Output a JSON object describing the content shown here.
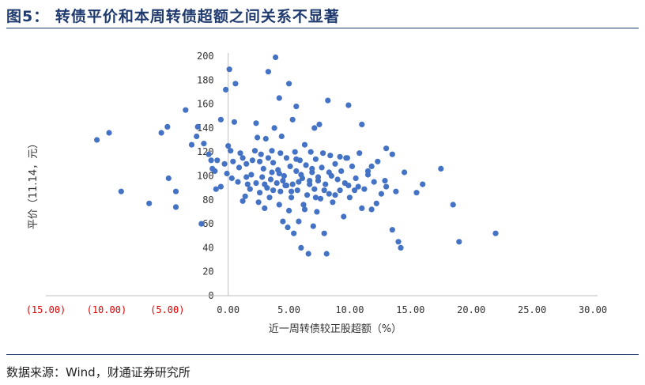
{
  "title": "图5：  转债平价和本周转债超额之间关系不显著",
  "source": "数据来源：Wind，财通证券研究所",
  "chart_data": {
    "type": "scatter",
    "xlabel": "近一周转债较正股超额（%）",
    "ylabel": "平价（11.14，元）",
    "xlim": [
      -15,
      30
    ],
    "ylim": [
      0,
      200
    ],
    "x_ticks": [
      -15,
      -10,
      -5,
      0,
      5,
      10,
      15,
      20,
      25,
      30
    ],
    "x_tick_labels": [
      "(15.00)",
      "(10.00)",
      "(5.00)",
      "0.00",
      "5.00",
      "10.00",
      "15.00",
      "20.00",
      "25.00",
      "30.00"
    ],
    "y_ticks": [
      0,
      20,
      40,
      60,
      80,
      100,
      120,
      140,
      160,
      180,
      200
    ],
    "y_tick_labels": [
      "0",
      "20",
      "40",
      "60",
      "80",
      "100",
      "120",
      "140",
      "160",
      "180",
      "200"
    ],
    "grid": false,
    "legend": "none",
    "point_color": "#4472c4",
    "negative_tick_color": "#e00000",
    "series": [
      {
        "points": [
          [
            -10.8,
            130
          ],
          [
            -9.8,
            136
          ],
          [
            -8.8,
            87
          ],
          [
            -6.5,
            77
          ],
          [
            -5.5,
            136
          ],
          [
            -5.0,
            141
          ],
          [
            -4.9,
            98
          ],
          [
            -4.3,
            74
          ],
          [
            -4.3,
            87
          ],
          [
            -3.5,
            155
          ],
          [
            -3.0,
            126
          ],
          [
            -2.6,
            133
          ],
          [
            -2.5,
            141
          ],
          [
            -2.2,
            60
          ],
          [
            -2.0,
            127
          ],
          [
            -1.6,
            118
          ],
          [
            -1.4,
            113
          ],
          [
            -1.3,
            106
          ],
          [
            -1.1,
            104
          ],
          [
            -1.0,
            89
          ],
          [
            -0.9,
            113
          ],
          [
            -0.6,
            91
          ],
          [
            -0.6,
            147
          ],
          [
            -0.2,
            172
          ],
          [
            -0.3,
            110
          ],
          [
            -0.1,
            102
          ],
          [
            0.0,
            125
          ],
          [
            0.1,
            189
          ],
          [
            0.2,
            121
          ],
          [
            0.3,
            98
          ],
          [
            0.4,
            112
          ],
          [
            0.5,
            145
          ],
          [
            0.6,
            177
          ],
          [
            0.8,
            95
          ],
          [
            0.9,
            107
          ],
          [
            1.0,
            119
          ],
          [
            1.2,
            115
          ],
          [
            1.2,
            79
          ],
          [
            1.4,
            83
          ],
          [
            1.5,
            110
          ],
          [
            1.5,
            99
          ],
          [
            1.6,
            93
          ],
          [
            1.8,
            89
          ],
          [
            1.9,
            101
          ],
          [
            2.0,
            113
          ],
          [
            2.2,
            121
          ],
          [
            2.3,
            144
          ],
          [
            2.4,
            132
          ],
          [
            2.5,
            78
          ],
          [
            2.6,
            86
          ],
          [
            2.7,
            118
          ],
          [
            2.8,
            99
          ],
          [
            2.9,
            106
          ],
          [
            3.0,
            73
          ],
          [
            3.1,
            131
          ],
          [
            3.2,
            90
          ],
          [
            3.3,
            115
          ],
          [
            3.3,
            187
          ],
          [
            3.4,
            82
          ],
          [
            3.5,
            97
          ],
          [
            3.6,
            121
          ],
          [
            3.7,
            111
          ],
          [
            3.8,
            140
          ],
          [
            3.9,
            199
          ],
          [
            4.0,
            94
          ],
          [
            4.1,
            105
          ],
          [
            4.2,
            76
          ],
          [
            4.3,
            87
          ],
          [
            4.3,
            119
          ],
          [
            4.4,
            133
          ],
          [
            4.5,
            62
          ],
          [
            4.6,
            100
          ],
          [
            4.7,
            92
          ],
          [
            4.8,
            115
          ],
          [
            4.9,
            57
          ],
          [
            5.0,
            71
          ],
          [
            5.0,
            177
          ],
          [
            5.1,
            108
          ],
          [
            5.2,
            82
          ],
          [
            5.3,
            93
          ],
          [
            5.3,
            147
          ],
          [
            5.4,
            52
          ],
          [
            5.5,
            120
          ],
          [
            5.6,
            104
          ],
          [
            5.7,
            88
          ],
          [
            5.8,
            62
          ],
          [
            5.9,
            113
          ],
          [
            6.0,
            40
          ],
          [
            6.1,
            98
          ],
          [
            6.2,
            76
          ],
          [
            6.3,
            126
          ],
          [
            6.4,
            109
          ],
          [
            6.5,
            84
          ],
          [
            6.6,
            35
          ],
          [
            6.7,
            96
          ],
          [
            6.8,
            120
          ],
          [
            6.9,
            103
          ],
          [
            7.0,
            58
          ],
          [
            7.1,
            89
          ],
          [
            7.2,
            114
          ],
          [
            7.3,
            70
          ],
          [
            7.4,
            99
          ],
          [
            7.5,
            143
          ],
          [
            7.6,
            81
          ],
          [
            7.7,
            107
          ],
          [
            7.8,
            119
          ],
          [
            7.9,
            52
          ],
          [
            8.0,
            93
          ],
          [
            8.2,
            163
          ],
          [
            8.3,
            85
          ],
          [
            8.4,
            117
          ],
          [
            8.5,
            100
          ],
          [
            8.6,
            78
          ],
          [
            8.8,
            110
          ],
          [
            9.0,
            97
          ],
          [
            9.2,
            88
          ],
          [
            9.3,
            104
          ],
          [
            9.5,
            66
          ],
          [
            9.7,
            115
          ],
          [
            9.9,
            92
          ],
          [
            10.0,
            82
          ],
          [
            10.2,
            108
          ],
          [
            10.5,
            98
          ],
          [
            10.8,
            119
          ],
          [
            11.0,
            73
          ],
          [
            11.2,
            89
          ],
          [
            11.5,
            101
          ],
          [
            11.8,
            72
          ],
          [
            12.0,
            95
          ],
          [
            12.3,
            112
          ],
          [
            12.6,
            85
          ],
          [
            13.0,
            123
          ],
          [
            13.5,
            118
          ],
          [
            13.8,
            87
          ],
          [
            14.0,
            45
          ],
          [
            14.5,
            103
          ],
          [
            15.5,
            86
          ],
          [
            16.0,
            93
          ],
          [
            17.5,
            106
          ],
          [
            18.5,
            76
          ],
          [
            19.0,
            45
          ],
          [
            22.0,
            52
          ],
          [
            2.3,
            94
          ],
          [
            3.7,
            88
          ],
          [
            4.8,
            92
          ],
          [
            5.6,
            114
          ],
          [
            6.3,
            72
          ],
          [
            7.4,
            96
          ],
          [
            8.8,
            84
          ],
          [
            9.8,
            115
          ],
          [
            10.7,
            91
          ],
          [
            12.2,
            77
          ],
          [
            13.5,
            55
          ],
          [
            3.0,
            93
          ],
          [
            4.2,
            102
          ],
          [
            5.8,
            95
          ],
          [
            6.9,
            106
          ],
          [
            7.9,
            88
          ],
          [
            8.1,
            35
          ],
          [
            9.2,
            116
          ],
          [
            11.5,
            104
          ],
          [
            13.0,
            91
          ],
          [
            14.2,
            40
          ],
          [
            2.6,
            112
          ],
          [
            3.6,
            103
          ],
          [
            4.5,
            96
          ],
          [
            5.2,
            87
          ],
          [
            6.0,
            101
          ],
          [
            6.7,
            93
          ],
          [
            7.2,
            82
          ],
          [
            8.3,
            103
          ],
          [
            9.6,
            94
          ],
          [
            10.4,
            88
          ],
          [
            11.8,
            108
          ],
          [
            12.9,
            96
          ],
          [
            4.2,
            165
          ],
          [
            5.6,
            158
          ],
          [
            7.1,
            140
          ],
          [
            9.9,
            159
          ],
          [
            11.0,
            143
          ]
        ]
      }
    ]
  }
}
